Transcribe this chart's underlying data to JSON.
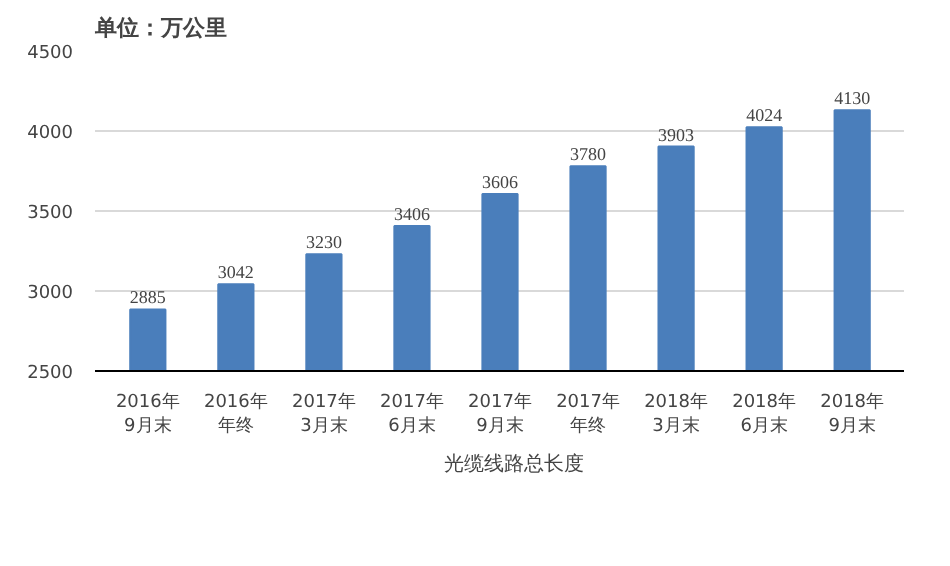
{
  "chart_data": {
    "type": "bar",
    "title": "单位：万公里",
    "categories": [
      "2016年9月末",
      "2016年年终",
      "2017年3月末",
      "2017年6月末",
      "2017年9月末",
      "2017年年终",
      "2018年3月末",
      "2018年6月末",
      "2018年9月末"
    ],
    "series": [
      {
        "name": "光缆线路总长度",
        "color": "#4a7ebb",
        "values": [
          2885,
          3042,
          3230,
          3406,
          3606,
          3780,
          3903,
          4024,
          4130
        ]
      }
    ],
    "ylim": [
      2500,
      4500
    ],
    "yticks": [
      2500,
      3000,
      3500,
      4000,
      4500
    ],
    "grid": "y",
    "legend": "bottom",
    "data_labels": true
  }
}
